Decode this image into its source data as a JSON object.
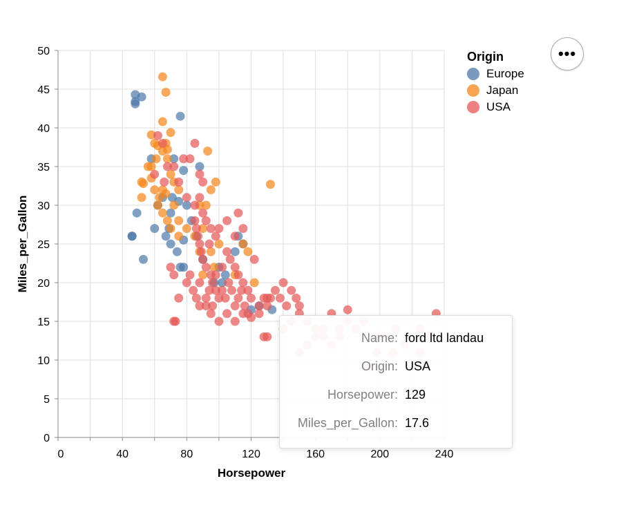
{
  "chart_data": {
    "type": "scatter",
    "title": "",
    "xlabel": "Horsepower",
    "ylabel": "Miles_per_Gallon",
    "xlim": [
      0,
      240
    ],
    "ylim": [
      0,
      50
    ],
    "x_ticks": [
      0,
      40,
      80,
      120,
      160,
      200,
      240
    ],
    "y_ticks": [
      0,
      5,
      10,
      15,
      20,
      25,
      30,
      35,
      40,
      45,
      50
    ],
    "grid": true,
    "legend": {
      "title": "Origin",
      "placement": "top-right"
    },
    "series": [
      {
        "name": "Europe",
        "color": "#4c78a8",
        "points": [
          [
            48,
            43.4
          ],
          [
            48,
            44.3
          ],
          [
            52,
            44
          ],
          [
            48,
            43.1
          ],
          [
            76,
            41.5
          ],
          [
            46,
            26
          ],
          [
            46,
            26
          ],
          [
            49,
            29
          ],
          [
            53,
            23
          ],
          [
            60,
            27
          ],
          [
            58,
            36
          ],
          [
            62,
            30
          ],
          [
            67,
            26
          ],
          [
            70,
            29
          ],
          [
            71,
            31
          ],
          [
            74,
            24
          ],
          [
            75,
            30.5
          ],
          [
            76,
            22
          ],
          [
            78,
            25.5
          ],
          [
            80,
            30
          ],
          [
            78,
            34.5
          ],
          [
            88,
            35
          ],
          [
            97,
            20
          ],
          [
            102,
            20
          ],
          [
            110,
            24
          ],
          [
            112,
            26
          ],
          [
            115,
            25
          ],
          [
            120,
            16.5
          ],
          [
            125,
            17
          ],
          [
            133,
            16.5
          ],
          [
            70,
            25
          ],
          [
            69,
            27
          ],
          [
            72,
            36
          ],
          [
            86,
            26
          ],
          [
            90,
            23
          ],
          [
            78,
            22
          ],
          [
            104,
            21
          ],
          [
            100,
            22
          ],
          [
            65,
            31
          ],
          [
            83,
            28
          ]
        ]
      },
      {
        "name": "Japan",
        "color": "#f58518",
        "points": [
          [
            65,
            46.6
          ],
          [
            67,
            44.6
          ],
          [
            65,
            40.8
          ],
          [
            70,
            39.4
          ],
          [
            58,
            39.1
          ],
          [
            60,
            38
          ],
          [
            62,
            37.7
          ],
          [
            65,
            37
          ],
          [
            67,
            38
          ],
          [
            68,
            37.2
          ],
          [
            52,
            33
          ],
          [
            53,
            32.8
          ],
          [
            58,
            35
          ],
          [
            60,
            32
          ],
          [
            63,
            31
          ],
          [
            65,
            32
          ],
          [
            67,
            31.5
          ],
          [
            70,
            34
          ],
          [
            72,
            33
          ],
          [
            75,
            32
          ],
          [
            62,
            30
          ],
          [
            65,
            29
          ],
          [
            68,
            28
          ],
          [
            70,
            27
          ],
          [
            75,
            28
          ],
          [
            80,
            27
          ],
          [
            85,
            26
          ],
          [
            88,
            24
          ],
          [
            90,
            27
          ],
          [
            92,
            30
          ],
          [
            93,
            37
          ],
          [
            95,
            32
          ],
          [
            98,
            33
          ],
          [
            100,
            25
          ],
          [
            97,
            22
          ],
          [
            95,
            24
          ],
          [
            110,
            21
          ],
          [
            115,
            25
          ],
          [
            118,
            24
          ],
          [
            122,
            20
          ],
          [
            132,
            32.7
          ],
          [
            75,
            26
          ],
          [
            68,
            36
          ],
          [
            72,
            30
          ],
          [
            88,
            30
          ],
          [
            52,
            31
          ],
          [
            58,
            33.5
          ],
          [
            61,
            36
          ],
          [
            56,
            35
          ],
          [
            90,
            21
          ]
        ]
      },
      {
        "name": "USA",
        "color": "#e45756",
        "points": [
          [
            62,
            39
          ],
          [
            65,
            38
          ],
          [
            68,
            35
          ],
          [
            72,
            35
          ],
          [
            78,
            36
          ],
          [
            82,
            36
          ],
          [
            85,
            38
          ],
          [
            88,
            34
          ],
          [
            90,
            33
          ],
          [
            60,
            34
          ],
          [
            66,
            33
          ],
          [
            75,
            33
          ],
          [
            80,
            31
          ],
          [
            85,
            30
          ],
          [
            88,
            31
          ],
          [
            90,
            29
          ],
          [
            92,
            28
          ],
          [
            95,
            27
          ],
          [
            98,
            26
          ],
          [
            100,
            27
          ],
          [
            105,
            28
          ],
          [
            110,
            26
          ],
          [
            112,
            29
          ],
          [
            115,
            27
          ],
          [
            85,
            28
          ],
          [
            86,
            27
          ],
          [
            87,
            26
          ],
          [
            88,
            25
          ],
          [
            89,
            24
          ],
          [
            90,
            23
          ],
          [
            92,
            22
          ],
          [
            94,
            25
          ],
          [
            95,
            21
          ],
          [
            96,
            20
          ],
          [
            98,
            19
          ],
          [
            100,
            18
          ],
          [
            102,
            22
          ],
          [
            105,
            24
          ],
          [
            107,
            23
          ],
          [
            110,
            22
          ],
          [
            112,
            21
          ],
          [
            115,
            20
          ],
          [
            118,
            19
          ],
          [
            120,
            18
          ],
          [
            122,
            23
          ],
          [
            125,
            17
          ],
          [
            128,
            18
          ],
          [
            130,
            17
          ],
          [
            132,
            18
          ],
          [
            135,
            19
          ],
          [
            138,
            18
          ],
          [
            140,
            20
          ],
          [
            142,
            17
          ],
          [
            145,
            19
          ],
          [
            148,
            18
          ],
          [
            150,
            17
          ],
          [
            140,
            14
          ],
          [
            145,
            15
          ],
          [
            150,
            16
          ],
          [
            155,
            15
          ],
          [
            160,
            14
          ],
          [
            165,
            13
          ],
          [
            170,
            16
          ],
          [
            175,
            14
          ],
          [
            180,
            16.5
          ],
          [
            180,
            15
          ],
          [
            185,
            14
          ],
          [
            190,
            15
          ],
          [
            200,
            13
          ],
          [
            210,
            14
          ],
          [
            215,
            12
          ],
          [
            220,
            13
          ],
          [
            225,
            14
          ],
          [
            230,
            13
          ],
          [
            225,
            11
          ],
          [
            208,
            11
          ],
          [
            198,
            11
          ],
          [
            193,
            9
          ],
          [
            235,
            16
          ],
          [
            150,
            11
          ],
          [
            155,
            12
          ],
          [
            160,
            13
          ],
          [
            165,
            14
          ],
          [
            170,
            12
          ],
          [
            175,
            13
          ],
          [
            130,
            13
          ],
          [
            128,
            13
          ],
          [
            72,
            15
          ],
          [
            73,
            15
          ],
          [
            88,
            17
          ],
          [
            92,
            17
          ],
          [
            95,
            16
          ],
          [
            100,
            15
          ],
          [
            105,
            16
          ],
          [
            110,
            15
          ],
          [
            115,
            16
          ],
          [
            120,
            15.5
          ],
          [
            70,
            22
          ],
          [
            72,
            21
          ],
          [
            75,
            18
          ],
          [
            80,
            20
          ],
          [
            82,
            21
          ],
          [
            84,
            19
          ],
          [
            86,
            18
          ],
          [
            88,
            20
          ],
          [
            92,
            18
          ],
          [
            94,
            19
          ],
          [
            96,
            17
          ],
          [
            98,
            21
          ],
          [
            102,
            19
          ],
          [
            104,
            18
          ],
          [
            106,
            20
          ],
          [
            108,
            19
          ],
          [
            110,
            17
          ],
          [
            112,
            18
          ],
          [
            114,
            19
          ],
          [
            116,
            17
          ],
          [
            118,
            16
          ],
          [
            125,
            16
          ],
          [
            130,
            18
          ]
        ]
      }
    ]
  },
  "menu": {
    "actions_label": "•••"
  },
  "tooltip": {
    "rows": [
      {
        "key": "Name:",
        "value": "ford ltd landau"
      },
      {
        "key": "Origin:",
        "value": "USA"
      },
      {
        "key": "Horsepower:",
        "value": "129"
      },
      {
        "key": "Miles_per_Gallon:",
        "value": "17.6"
      }
    ]
  }
}
